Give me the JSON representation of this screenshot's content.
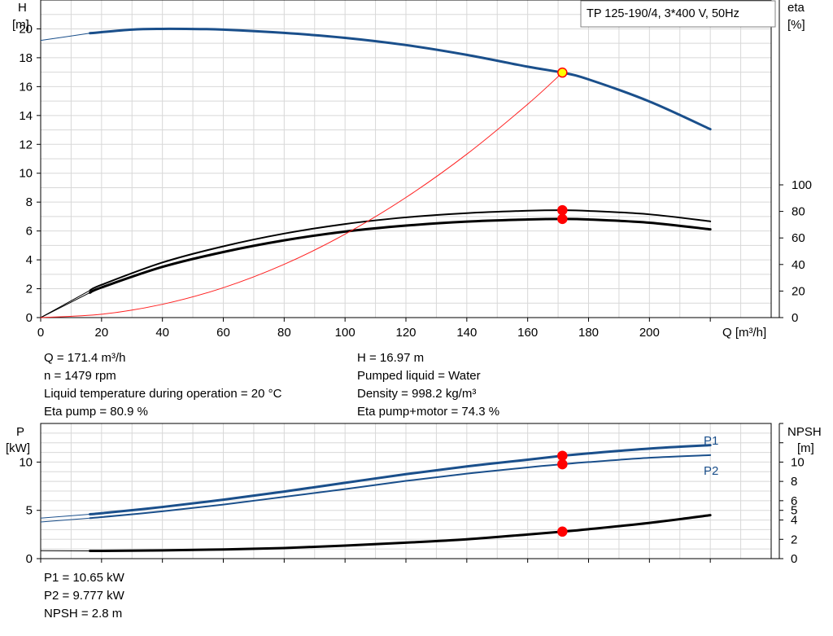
{
  "top_chart": {
    "title_box": "TP 125-190/4, 3*400 V, 50Hz",
    "left_axis": {
      "label": "H",
      "unit": "[m]",
      "min": 0,
      "max": 22,
      "ticks": [
        0,
        2,
        4,
        6,
        8,
        10,
        12,
        14,
        16,
        18,
        20
      ]
    },
    "right_axis": {
      "label": "eta",
      "unit": "[%]",
      "min": 0,
      "max": 100,
      "ticks": [
        0,
        20,
        40,
        60,
        80,
        100
      ]
    },
    "x_axis": {
      "label": "Q [m³/h]",
      "min": 0,
      "max": 240,
      "ticks": [
        0,
        20,
        40,
        60,
        80,
        100,
        120,
        140,
        160,
        180,
        200
      ]
    }
  },
  "bottom_chart": {
    "left_axis": {
      "label": "P",
      "unit": "[kW]",
      "min": 0,
      "max": 14,
      "ticks": [
        0,
        5,
        10
      ]
    },
    "right_axis": {
      "label": "NPSH",
      "unit": "[m]",
      "min": 0,
      "max": 14,
      "ticks": [
        0,
        2,
        4,
        5,
        6,
        8,
        10
      ]
    },
    "x_axis": {
      "min": 0,
      "max": 240
    },
    "curve_labels": {
      "p1": "P1",
      "p2": "P2"
    }
  },
  "chart_data": [
    {
      "type": "line",
      "name": "top",
      "xlim": [
        0,
        240
      ],
      "ylim": [
        0,
        22
      ],
      "y2lim": [
        0,
        100
      ],
      "grid": true,
      "series": [
        {
          "id": "H",
          "color": "#1a4f8b",
          "axis": "left",
          "x_faint": [
            0,
            16.2
          ],
          "y_faint": [
            19.2,
            19.7
          ],
          "x": [
            16.2,
            30,
            40,
            50,
            60,
            80,
            100,
            120,
            140,
            160,
            171.4,
            180,
            200,
            220
          ],
          "y": [
            19.7,
            19.95,
            20.0,
            19.99,
            19.95,
            19.72,
            19.38,
            18.88,
            18.2,
            17.38,
            16.97,
            16.5,
            14.97,
            13.05
          ]
        },
        {
          "id": "eta_pump",
          "color": "#000000",
          "axis": "right",
          "x_faint": [
            0,
            16.2
          ],
          "y_faint": [
            0,
            20.5
          ],
          "x": [
            16.2,
            20,
            40,
            60,
            80,
            100,
            120,
            140,
            160,
            171.4,
            180,
            200,
            220
          ],
          "y": [
            20.5,
            24.7,
            41.5,
            53.7,
            63.3,
            70.5,
            75.5,
            78.7,
            80.5,
            80.9,
            80.4,
            77.8,
            72.5
          ]
        },
        {
          "id": "eta_pump_motor",
          "color": "#000000",
          "axis": "right",
          "x_faint": [
            0,
            16.2
          ],
          "y_faint": [
            0,
            18.8
          ],
          "x": [
            16.2,
            20,
            40,
            60,
            80,
            100,
            120,
            140,
            160,
            171.4,
            180,
            200,
            220
          ],
          "y": [
            18.8,
            22.7,
            38.2,
            49.4,
            58.2,
            64.8,
            69.3,
            72.3,
            73.9,
            74.3,
            73.9,
            71.5,
            66.5
          ]
        },
        {
          "id": "system_curve",
          "color": "#ff2020",
          "axis": "left",
          "x": [
            0,
            20,
            40,
            60,
            80,
            100,
            120,
            140,
            160,
            171.4
          ],
          "y": [
            0,
            0.23,
            0.92,
            2.07,
            3.69,
            5.78,
            8.32,
            11.32,
            14.78,
            16.97
          ]
        }
      ],
      "duty_points": [
        {
          "x": 171.4,
          "y": 16.97,
          "axis": "left",
          "fill": "#ffff00",
          "stroke": "#ff0000"
        },
        {
          "x": 171.4,
          "y": 80.9,
          "axis": "right",
          "fill": "#ff0000",
          "stroke": "#ff0000"
        },
        {
          "x": 171.4,
          "y": 74.3,
          "axis": "right",
          "fill": "#ff0000",
          "stroke": "#ff0000"
        }
      ]
    },
    {
      "type": "line",
      "name": "bottom",
      "xlim": [
        0,
        240
      ],
      "ylim": [
        0,
        14
      ],
      "y2lim": [
        0,
        14
      ],
      "grid": true,
      "series": [
        {
          "id": "P1",
          "color": "#1a4f8b",
          "axis": "left",
          "x_faint": [
            0,
            16.2
          ],
          "y_faint": [
            4.2,
            4.6
          ],
          "x": [
            16.2,
            20,
            40,
            60,
            80,
            100,
            120,
            140,
            160,
            171.4,
            180,
            200,
            220
          ],
          "y": [
            4.6,
            4.7,
            5.35,
            6.1,
            6.95,
            7.85,
            8.75,
            9.55,
            10.25,
            10.65,
            10.9,
            11.4,
            11.75
          ]
        },
        {
          "id": "P2",
          "color": "#1a4f8b",
          "axis": "left",
          "x_faint": [
            0,
            16.2
          ],
          "y_faint": [
            3.8,
            4.2
          ],
          "x": [
            16.2,
            20,
            40,
            60,
            80,
            100,
            120,
            140,
            160,
            171.4,
            180,
            200,
            220
          ],
          "y": [
            4.2,
            4.3,
            4.9,
            5.6,
            6.4,
            7.2,
            8.05,
            8.8,
            9.45,
            9.777,
            10.0,
            10.45,
            10.72
          ]
        },
        {
          "id": "NPSH",
          "color": "#000000",
          "axis": "right",
          "x_faint": [
            0,
            16.2
          ],
          "y_faint": [
            0.82,
            0.8
          ],
          "x": [
            16.2,
            20,
            40,
            60,
            80,
            100,
            120,
            140,
            160,
            171.4,
            180,
            200,
            220
          ],
          "y": [
            0.8,
            0.8,
            0.85,
            0.95,
            1.1,
            1.35,
            1.65,
            2.0,
            2.5,
            2.8,
            3.05,
            3.7,
            4.5
          ]
        }
      ],
      "duty_points": [
        {
          "x": 171.4,
          "y": 10.65,
          "axis": "left",
          "fill": "#ff0000",
          "stroke": "#ff0000"
        },
        {
          "x": 171.4,
          "y": 9.777,
          "axis": "left",
          "fill": "#ff0000",
          "stroke": "#ff0000"
        },
        {
          "x": 171.4,
          "y": 2.8,
          "axis": "right",
          "fill": "#ff0000",
          "stroke": "#ff0000"
        }
      ]
    }
  ],
  "info_top_left": [
    "Q = 171.4 m³/h",
    "n = 1479 rpm",
    "Liquid temperature during operation = 20 °C",
    "Eta pump = 80.9 %"
  ],
  "info_top_right": [
    "H = 16.97 m",
    "Pumped liquid = Water",
    "Density = 998.2 kg/m³",
    "Eta pump+motor = 74.3 %"
  ],
  "info_bottom": [
    "P1 = 10.65 kW",
    "P2 = 9.777 kW",
    "NPSH = 2.8 m"
  ]
}
